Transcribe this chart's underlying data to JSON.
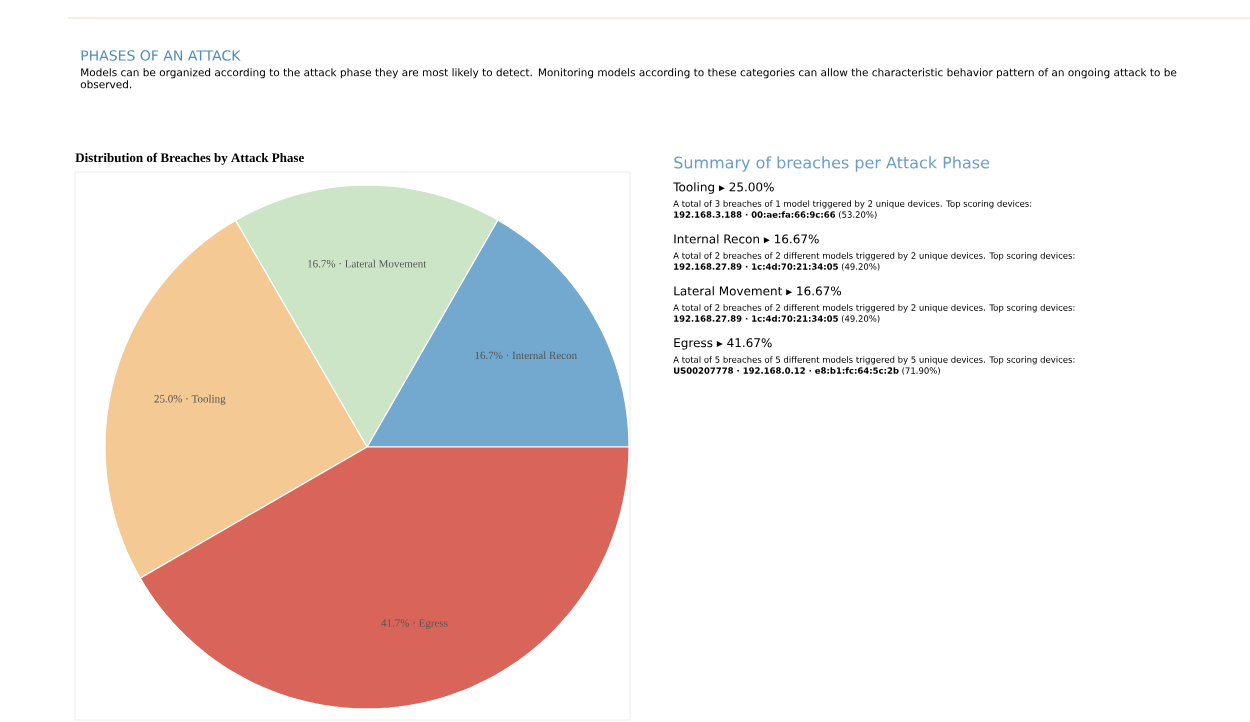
{
  "chart_data": [
    {
      "type": "other",
      "title": "PHASES OF AN ATTACK",
      "annotations": [
        "Models can be organized according to the attack phase they are most likely to detect. Monitoring models according to these categories can allow the characteristic behavior pattern of an ongoing attack to be observed."
      ]
    },
    {
      "type": "pie",
      "title": "Distribution of Breaches by Attack Phase",
      "categories": [
        "Internal Recon",
        "Lateral Movement",
        "Tooling",
        "Egress"
      ],
      "values": [
        16.7,
        16.7,
        25.0,
        41.7
      ],
      "colors": [
        "#74a9cf",
        "#cde5c7",
        "#f5c993",
        "#d9655a"
      ],
      "value_labels": [
        "16.7% ·",
        "16.7% ·",
        "25.0% ·",
        "41.7% ·"
      ]
    },
    {
      "type": "other",
      "title": "Summary of breaches per Attack Phase",
      "categories": [
        "Tooling ▸ 25.00%",
        "Internal Recon ▸ 16.67%",
        "Lateral Movement ▸ 16.67%",
        "Egress ▸ 41.67%"
      ],
      "annotations": [
        "A total of 3 breaches of 1 model triggered by 2 unique devices. Top scoring devices:",
        "**192.168.3.188 · 00:ae:fa:66:9c:66** (53.20%)",
        "A total of 2 breaches of 2 different models triggered by 2 unique devices. Top scoring devices:",
        "**192.168.27.89 · 1c:4d:70:21:34:05** (49.20%)",
        "A total of 2 breaches of 2 different models triggered by 2 unique devices. Top scoring devices:",
        "**192.168.27.89 · 1c:4d:70:21:34:05** (49.20%)",
        "A total of 5 breaches of 5 different models triggered by 5 unique devices. Top scoring devices:",
        "**US00207778 · 192.168.0.12 · e8:b1:fc:64:5c:2b** (71.90%)"
      ]
    }
  ]
}
